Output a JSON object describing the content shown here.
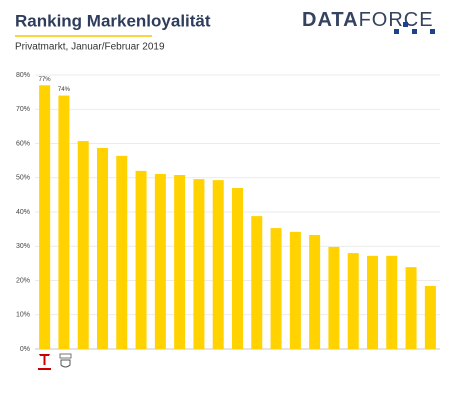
{
  "chart_data": {
    "type": "bar",
    "title": "Ranking Markenloyalität",
    "subtitle": "Privatmarkt, Januar/Februar 2019",
    "brand": [
      "DATA",
      "FORCE"
    ],
    "values": [
      77,
      74,
      60.7,
      58.7,
      56.4,
      52,
      51.1,
      50.8,
      49.6,
      49.3,
      47,
      38.8,
      35.3,
      34.2,
      33.3,
      29.8,
      28,
      27.2,
      27.2,
      23.9,
      18.4
    ],
    "value_labels": [
      "77%",
      "74%",
      null,
      null,
      null,
      null,
      null,
      null,
      null,
      null,
      null,
      null,
      null,
      null,
      null,
      null,
      null,
      null,
      null,
      null,
      null
    ],
    "color": "#ffd200",
    "ylim": [
      0,
      80
    ],
    "yticks": [
      {
        "value": 0,
        "label": "0%"
      },
      {
        "value": 10,
        "label": "10%"
      },
      {
        "value": 20,
        "label": "20%"
      },
      {
        "value": 30,
        "label": "30%"
      },
      {
        "value": 40,
        "label": "40%"
      },
      {
        "value": 50,
        "label": "50%"
      },
      {
        "value": 60,
        "label": "60%"
      },
      {
        "value": 70,
        "label": "70%"
      },
      {
        "value": 80,
        "label": "80%"
      }
    ],
    "grid": true
  }
}
